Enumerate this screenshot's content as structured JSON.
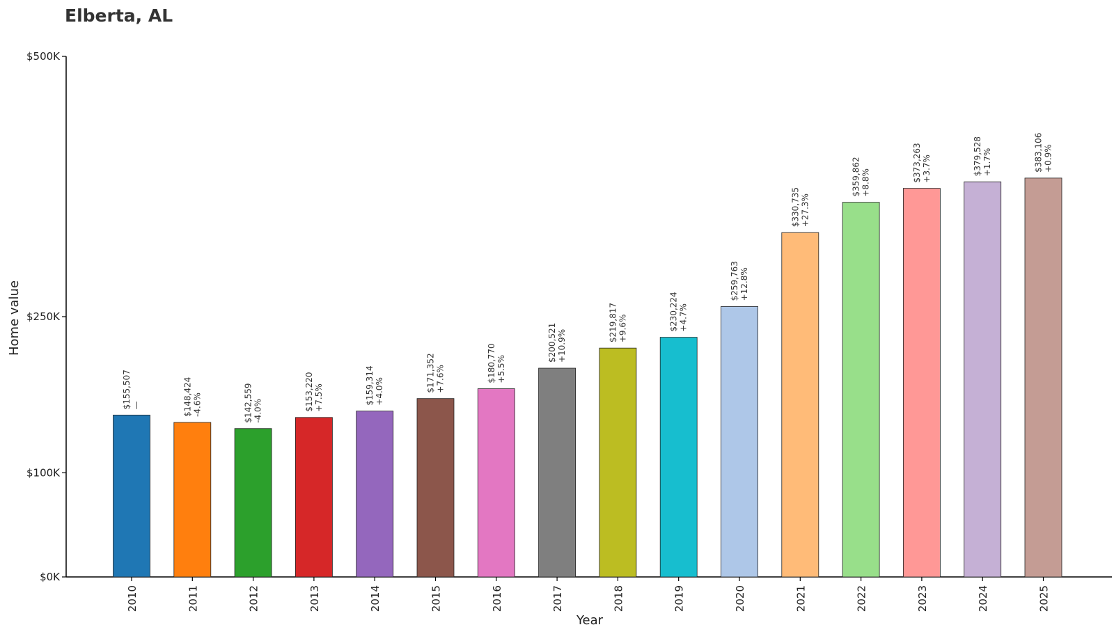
{
  "chart_data": {
    "type": "bar",
    "title": "Elberta, AL",
    "xlabel": "Year",
    "ylabel": "Home value",
    "categories": [
      "2010",
      "2011",
      "2012",
      "2013",
      "2014",
      "2015",
      "2016",
      "2017",
      "2018",
      "2019",
      "2020",
      "2021",
      "2022",
      "2023",
      "2024",
      "2025"
    ],
    "values": [
      155507,
      148424,
      142559,
      153220,
      159314,
      171352,
      180770,
      200521,
      219817,
      230224,
      259763,
      330735,
      359862,
      373263,
      379528,
      383106
    ],
    "value_labels": [
      "$155,507",
      "$148,424",
      "$142,559",
      "$153,220",
      "$159,314",
      "$171,352",
      "$180,770",
      "$200,521",
      "$219,817",
      "$230,224",
      "$259,763",
      "$330,735",
      "$359,862",
      "$373,263",
      "$379,528",
      "$383,106"
    ],
    "change_labels": [
      "—",
      "-4.6%",
      "-4.0%",
      "+7.5%",
      "+4.0%",
      "+7.6%",
      "+5.5%",
      "+10.9%",
      "+9.6%",
      "+4.7%",
      "+12.8%",
      "+27.3%",
      "+8.8%",
      "+3.7%",
      "+1.7%",
      "+0.9%"
    ],
    "colors": [
      "#1f77b4",
      "#ff7f0e",
      "#2ca02c",
      "#d62728",
      "#9467bd",
      "#8c564b",
      "#e377c2",
      "#7f7f7f",
      "#bcbd22",
      "#17becf",
      "#aec7e8",
      "#ffbb78",
      "#98df8a",
      "#ff9896",
      "#c5b0d5",
      "#c49c94"
    ],
    "yticks": [
      0,
      100000,
      250000,
      500000
    ],
    "ytick_labels": [
      "$0K",
      "$100K",
      "$250K",
      "$500K"
    ],
    "ylim": [
      0,
      500000
    ],
    "grid": false,
    "legend": "none"
  }
}
